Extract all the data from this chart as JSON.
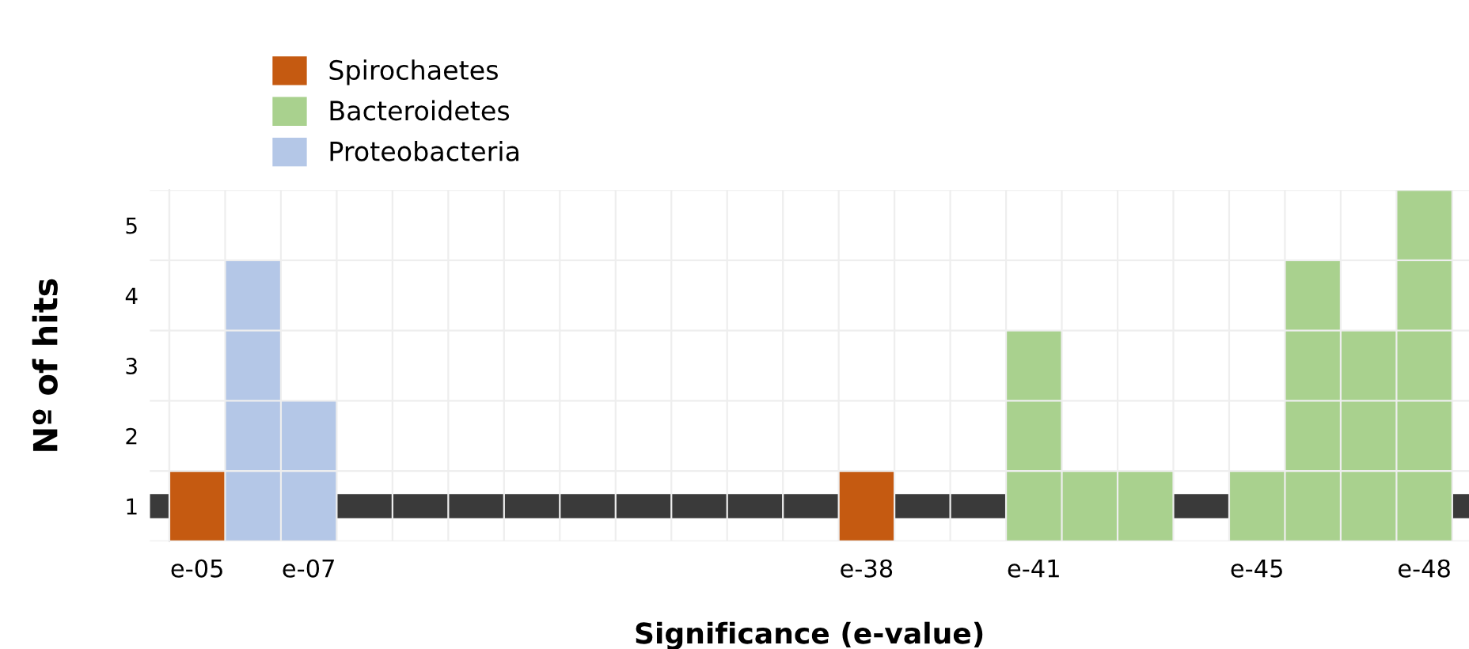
{
  "chart_data": {
    "type": "bar",
    "xlabel": "Significance (e-value)",
    "ylabel": "Nº of hits",
    "categories": [
      "e-05",
      null,
      "e-07",
      null,
      null,
      null,
      null,
      null,
      null,
      null,
      null,
      null,
      "e-38",
      null,
      null,
      "e-41",
      null,
      null,
      null,
      "e-45",
      null,
      null,
      "e-48"
    ],
    "series": [
      {
        "name": "Spirochaetes",
        "color": "#c55a11",
        "values": [
          1,
          null,
          null,
          null,
          null,
          null,
          null,
          null,
          null,
          null,
          null,
          null,
          1,
          null,
          null,
          null,
          null,
          null,
          null,
          null,
          null,
          null,
          null
        ]
      },
      {
        "name": "Bacteroidetes",
        "color": "#a9d18e",
        "values": [
          null,
          null,
          null,
          null,
          null,
          null,
          null,
          null,
          null,
          null,
          null,
          null,
          null,
          null,
          null,
          3,
          1,
          1,
          null,
          1,
          4,
          3,
          5
        ]
      },
      {
        "name": "Proteobacteria",
        "color": "#b4c7e7",
        "values": [
          null,
          4,
          2,
          null,
          null,
          null,
          null,
          null,
          null,
          null,
          null,
          null,
          null,
          null,
          null,
          null,
          null,
          null,
          null,
          null,
          null,
          null,
          null
        ]
      }
    ],
    "ylim": [
      0,
      5
    ],
    "yticks": [
      {
        "value": 0.5,
        "label": "1"
      },
      {
        "value": 1.5,
        "label": "2"
      },
      {
        "value": 2.5,
        "label": "3"
      },
      {
        "value": 3.5,
        "label": "4"
      },
      {
        "value": 4.5,
        "label": "5"
      }
    ],
    "ref_lines": [
      {
        "axis": "y",
        "value": 0.5,
        "color": "#3a3a3a"
      }
    ],
    "grid": true,
    "legend": "top left"
  }
}
